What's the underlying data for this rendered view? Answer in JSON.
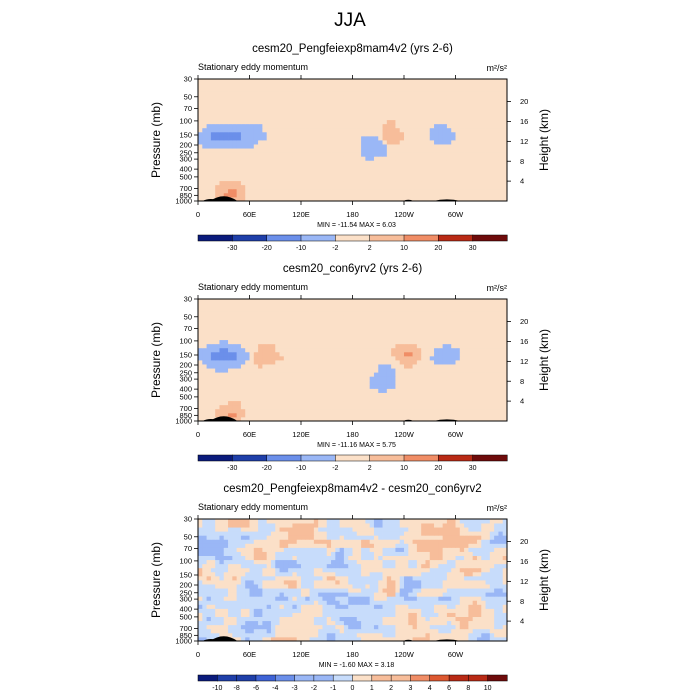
{
  "figure": {
    "title": "JJA"
  },
  "colors": {
    "diverging": [
      "#0a1b7c",
      "#1f3fa9",
      "#3e63d6",
      "#6b8fea",
      "#9ab7f6",
      "#c7dcfb",
      "#fbe0c8",
      "#f7bd9a",
      "#f08d66",
      "#dd5831",
      "#b92a15",
      "#6e0b0b"
    ],
    "outline": "#000000"
  },
  "panels": [
    {
      "title": "cesm20_Pengfeiexp8mam4v2 (yrs 2-6)",
      "left_label": "Stationary eddy momentum",
      "units": "m²/s²",
      "stats": "MIN = -11.54  MAX =  6.03",
      "cb_labels": [
        "-30",
        "-20",
        "-10",
        "-2",
        "2",
        "10",
        "20",
        "30"
      ]
    },
    {
      "title": "cesm20_con6yrv2 (yrs 2-6)",
      "left_label": "Stationary eddy momentum",
      "units": "m²/s²",
      "stats": "MIN = -11.16  MAX =  5.75",
      "cb_labels": [
        "-30",
        "-20",
        "-10",
        "-2",
        "2",
        "10",
        "20",
        "30"
      ]
    },
    {
      "title": "cesm20_Pengfeiexp8mam4v2 - cesm20_con6yrv2",
      "left_label": "Stationary eddy momentum",
      "units": "m²/s²",
      "stats": "MIN = -1.60  MAX =  3.18",
      "cb_labels": [
        "-10",
        "-8",
        "-6",
        "-4",
        "-3",
        "-2",
        "-1",
        "0",
        "1",
        "2",
        "3",
        "4",
        "6",
        "8",
        "10"
      ]
    }
  ],
  "chart_data": [
    {
      "type": "heatmap",
      "title": "cesm20_Pengfeiexp8mam4v2 (yrs 2-6)",
      "variable": "Stationary eddy momentum",
      "units": "m²/s²",
      "ylabel": "Pressure (mb)",
      "ylabel_right": "Height (km)",
      "x_ticks": [
        "0",
        "60E",
        "120E",
        "180",
        "120W",
        "60W"
      ],
      "y_ticks": [
        "30",
        "50",
        "70",
        "100",
        "150",
        "200",
        "250",
        "300",
        "400",
        "500",
        "700",
        "850",
        "1000"
      ],
      "y_ticks_right": [
        "20",
        "16",
        "12",
        "8",
        "4"
      ],
      "min": -11.54,
      "max": 6.03,
      "levels": [
        -30,
        -20,
        -10,
        -2,
        2,
        10,
        20,
        30
      ],
      "features": [
        {
          "lon": 20,
          "p": 150,
          "sign": "neg",
          "magnitude": "moderate"
        },
        {
          "lon": 40,
          "p": 150,
          "sign": "neg",
          "magnitude": "moderate"
        },
        {
          "lon": 60,
          "p": 150,
          "sign": "neg",
          "magnitude": "weak"
        },
        {
          "lon": 225,
          "p": 150,
          "sign": "pos",
          "magnitude": "weak"
        },
        {
          "lon": 205,
          "p": 200,
          "sign": "neg",
          "magnitude": "weak"
        },
        {
          "lon": 285,
          "p": 150,
          "sign": "neg",
          "magnitude": "weak"
        },
        {
          "lon": 38,
          "p": 800,
          "sign": "pos",
          "magnitude": "moderate"
        }
      ]
    },
    {
      "type": "heatmap",
      "title": "cesm20_con6yrv2 (yrs 2-6)",
      "variable": "Stationary eddy momentum",
      "units": "m²/s²",
      "ylabel": "Pressure (mb)",
      "ylabel_right": "Height (km)",
      "x_ticks": [
        "0",
        "60E",
        "120E",
        "180",
        "120W",
        "60W"
      ],
      "y_ticks": [
        "30",
        "50",
        "70",
        "100",
        "150",
        "200",
        "250",
        "300",
        "400",
        "500",
        "700",
        "850",
        "1000"
      ],
      "y_ticks_right": [
        "20",
        "16",
        "12",
        "8",
        "4"
      ],
      "min": -11.16,
      "max": 5.75,
      "levels": [
        -30,
        -20,
        -10,
        -2,
        2,
        10,
        20,
        30
      ],
      "features": [
        {
          "lon": 20,
          "p": 150,
          "sign": "neg",
          "magnitude": "moderate"
        },
        {
          "lon": 40,
          "p": 150,
          "sign": "neg",
          "magnitude": "moderate"
        },
        {
          "lon": 80,
          "p": 150,
          "sign": "pos",
          "magnitude": "weak"
        },
        {
          "lon": 245,
          "p": 150,
          "sign": "pos",
          "magnitude": "moderate"
        },
        {
          "lon": 215,
          "p": 300,
          "sign": "neg",
          "magnitude": "weak"
        },
        {
          "lon": 290,
          "p": 150,
          "sign": "neg",
          "magnitude": "weak"
        },
        {
          "lon": 38,
          "p": 800,
          "sign": "pos",
          "magnitude": "moderate"
        }
      ]
    },
    {
      "type": "heatmap",
      "title": "cesm20_Pengfeiexp8mam4v2 - cesm20_con6yrv2",
      "variable": "Stationary eddy momentum",
      "units": "m²/s²",
      "ylabel": "Pressure (mb)",
      "ylabel_right": "Height (km)",
      "x_ticks": [
        "0",
        "60E",
        "120E",
        "180",
        "120W",
        "60W"
      ],
      "y_ticks": [
        "30",
        "50",
        "70",
        "100",
        "150",
        "200",
        "250",
        "300",
        "400",
        "500",
        "700",
        "850",
        "1000"
      ],
      "y_ticks_right": [
        "20",
        "16",
        "12",
        "8",
        "4"
      ],
      "min": -1.6,
      "max": 3.18,
      "levels": [
        -10,
        -8,
        -6,
        -4,
        -3,
        -2,
        -1,
        0,
        1,
        2,
        3,
        4,
        6,
        8,
        10
      ],
      "features": [
        {
          "lon": 225,
          "p": 200,
          "sign": "pos",
          "magnitude": "weak"
        },
        {
          "lon": 245,
          "p": 200,
          "sign": "neg",
          "magnitude": "weak"
        },
        {
          "lon": 60,
          "p": 200,
          "sign": "neg",
          "magnitude": "weak"
        },
        {
          "lon": 100,
          "p": 100,
          "sign": "neg",
          "magnitude": "weak"
        }
      ]
    }
  ]
}
